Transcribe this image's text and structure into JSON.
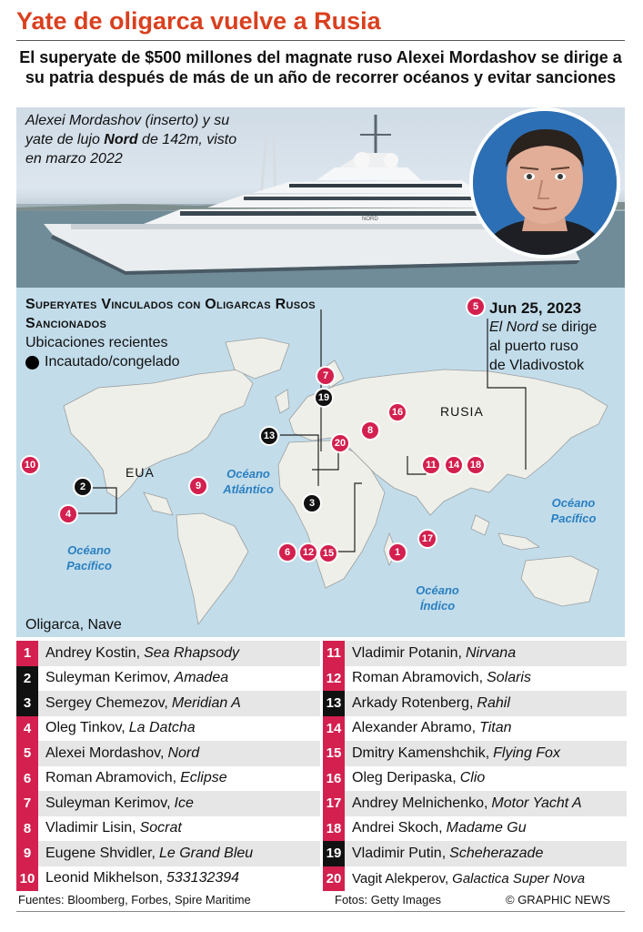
{
  "title": "Yate de oligarca vuelve a Rusia",
  "subtitle": "El superyate de $500 millones del magnate ruso Alexei Mordashov se dirige a su patria después de más de un año de recorrer océanos y evitar sanciones",
  "photo": {
    "caption_pre": "Alexei Mordashov (inserto) y su yate de lujo ",
    "caption_bold": "Nord",
    "caption_post": " de 142m, visto en marzo 2022",
    "hull_label": "NORD"
  },
  "map": {
    "title": "Superyates Vinculados con Oligarcas Rusos Sancionados",
    "subtitle": "Ubicaciones recientes",
    "legend_label": "Incautado/congelado",
    "callout": {
      "pin": "5",
      "date": "Jun 25, 2023",
      "line1_italic": "El Nord",
      "line1_rest": " se dirige",
      "line2": "al puerto ruso",
      "line3": "de Vladivostok"
    },
    "country_labels": {
      "usa": "EUA",
      "russia": "RUSIA"
    },
    "oceans": {
      "atlantic": "Océano Atlántico",
      "pacific_east": "Océano Pacífico",
      "pacific_west": "Océano Pacífico",
      "indian": "Océano Índico"
    },
    "pins": [
      {
        "label": "1",
        "color": "red"
      },
      {
        "label": "2",
        "color": "black"
      },
      {
        "label": "3",
        "color": "black"
      },
      {
        "label": "4",
        "color": "red"
      },
      {
        "label": "6",
        "color": "red"
      },
      {
        "label": "7",
        "color": "red"
      },
      {
        "label": "8",
        "color": "red"
      },
      {
        "label": "9",
        "color": "red"
      },
      {
        "label": "10",
        "color": "red"
      },
      {
        "label": "11",
        "color": "red"
      },
      {
        "label": "12",
        "color": "red"
      },
      {
        "label": "13",
        "color": "black"
      },
      {
        "label": "14",
        "color": "red"
      },
      {
        "label": "15",
        "color": "red"
      },
      {
        "label": "16",
        "color": "red"
      },
      {
        "label": "17",
        "color": "red"
      },
      {
        "label": "18",
        "color": "red"
      },
      {
        "label": "19",
        "color": "black"
      },
      {
        "label": "20",
        "color": "red"
      }
    ]
  },
  "list_heading": "Oligarca, Nave",
  "yachts_left": [
    {
      "num": "1",
      "color": "red",
      "owner": "Andrey Kostin,",
      "ship": "Sea Rhapsody"
    },
    {
      "num": "2",
      "color": "black",
      "owner": "Suleyman Kerimov,",
      "ship": "Amadea"
    },
    {
      "num": "3",
      "color": "black",
      "owner": "Sergey Chemezov,",
      "ship": "Meridian A"
    },
    {
      "num": "4",
      "color": "red",
      "owner": "Oleg Tinkov,",
      "ship": "La Datcha"
    },
    {
      "num": "5",
      "color": "red",
      "owner": "Alexei Mordashov,",
      "ship": "Nord"
    },
    {
      "num": "6",
      "color": "red",
      "owner": "Roman Abramovich,",
      "ship": "Eclipse"
    },
    {
      "num": "7",
      "color": "red",
      "owner": "Suleyman Kerimov,",
      "ship": "Ice"
    },
    {
      "num": "8",
      "color": "red",
      "owner": "Vladimir Lisin,",
      "ship": "Socrat"
    },
    {
      "num": "9",
      "color": "red",
      "owner": "Eugene Shvidler,",
      "ship": "Le Grand Bleu"
    },
    {
      "num": "10",
      "color": "red",
      "owner": "Leonid Mikhelson,",
      "ship": "533132394"
    }
  ],
  "yachts_right": [
    {
      "num": "11",
      "color": "red",
      "owner": "Vladimir Potanin,",
      "ship": "Nirvana"
    },
    {
      "num": "12",
      "color": "red",
      "owner": "Roman Abramovich,",
      "ship": "Solaris"
    },
    {
      "num": "13",
      "color": "black",
      "owner": "Arkady Rotenberg,",
      "ship": "Rahil"
    },
    {
      "num": "14",
      "color": "red",
      "owner": "Alexander Abramo,",
      "ship": "Titan"
    },
    {
      "num": "15",
      "color": "red",
      "owner": "Dmitry Kamenshchik,",
      "ship": "Flying Fox"
    },
    {
      "num": "16",
      "color": "red",
      "owner": "Oleg Deripaska,",
      "ship": "Clio"
    },
    {
      "num": "17",
      "color": "red",
      "owner": "Andrey Melnichenko,",
      "ship": "Motor Yacht A"
    },
    {
      "num": "18",
      "color": "red",
      "owner": "Andrei Skoch,",
      "ship": "Madame Gu"
    },
    {
      "num": "19",
      "color": "black",
      "owner": "Vladimir Putin,",
      "ship": "Scheherazade"
    },
    {
      "num": "20",
      "color": "red",
      "owner": "Vagit Alekperov,",
      "ship": "Galactica Super Nova"
    }
  ],
  "footer": {
    "sources": "Fuentes: Bloomberg, Forbes, Spire Maritime",
    "photos": "Fotos: Getty Images",
    "credit": "© GRAPHIC NEWS"
  },
  "colors": {
    "accent": "#d9401f",
    "pin_red": "#d3204f",
    "pin_black": "#111111",
    "ocean_text": "#2a7fc0",
    "sea": "#c2dcea",
    "land": "#efefe9"
  }
}
